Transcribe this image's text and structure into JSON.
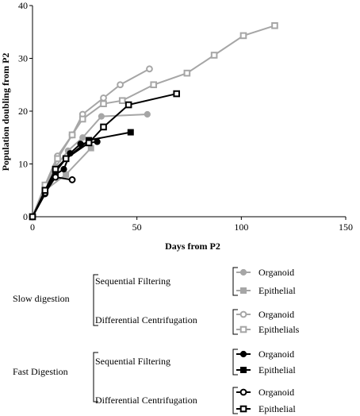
{
  "chart_data": {
    "type": "line",
    "xlabel": "Days from P2",
    "ylabel": "Population doubling from P2",
    "xlim": [
      0,
      150
    ],
    "ylim": [
      0,
      40
    ],
    "x_ticks": [
      0,
      50,
      100,
      150
    ],
    "y_ticks": [
      0,
      10,
      20,
      30,
      40
    ],
    "grid": false,
    "legend_position": "bottom",
    "series": [
      {
        "name": "Organoid",
        "group": "Slow digestion",
        "method": "Sequential Filtering",
        "color": "#a6a6a6",
        "marker": "circle-filled",
        "x": [
          0,
          6,
          11,
          17,
          24,
          33,
          55
        ],
        "y": [
          0,
          5.5,
          9.5,
          12.5,
          15,
          19,
          19.4
        ]
      },
      {
        "name": "Epithelial",
        "group": "Slow digestion",
        "method": "Sequential Filtering",
        "color": "#a6a6a6",
        "marker": "square-filled",
        "x": [
          0,
          6,
          16,
          28
        ],
        "y": [
          0,
          5,
          8,
          13
        ]
      },
      {
        "name": "Organoid",
        "group": "Slow digestion",
        "method": "Differential Centrifugation",
        "color": "#a6a6a6",
        "marker": "circle-open",
        "x": [
          0,
          6,
          12,
          19,
          24,
          34,
          42,
          56
        ],
        "y": [
          0,
          6,
          11.5,
          15.5,
          19.4,
          22.5,
          25,
          28
        ]
      },
      {
        "name": "Epithelials",
        "group": "Slow digestion",
        "method": "Differential Centrifugation",
        "color": "#a6a6a6",
        "marker": "square-open",
        "x": [
          0,
          6,
          12,
          19,
          24,
          34,
          43,
          58,
          74,
          87,
          101,
          116
        ],
        "y": [
          0,
          6,
          11,
          15.5,
          18.5,
          21.4,
          22,
          25,
          27.2,
          30.6,
          34.3,
          36.2
        ]
      },
      {
        "name": "Organoid",
        "group": "Fast Digestion",
        "method": "Sequential Filtering",
        "color": "#000000",
        "marker": "circle-filled",
        "x": [
          0,
          6,
          11,
          15,
          18,
          23,
          31
        ],
        "y": [
          0,
          4.3,
          8,
          9,
          12,
          13.8,
          14.2
        ]
      },
      {
        "name": "Epithelial",
        "group": "Fast Digestion",
        "method": "Sequential Filtering",
        "color": "#000000",
        "marker": "square-filled",
        "x": [
          0,
          6,
          11,
          16,
          27,
          47
        ],
        "y": [
          0,
          4.8,
          8.5,
          11,
          14.5,
          16
        ]
      },
      {
        "name": "Organoid",
        "group": "Fast Digestion",
        "method": "Differential Centrifugation",
        "color": "#000000",
        "marker": "circle-open",
        "x": [
          0,
          6,
          11,
          19
        ],
        "y": [
          0,
          4.5,
          7.5,
          7
        ]
      },
      {
        "name": "Epithelial",
        "group": "Fast Digestion",
        "method": "Differential Centrifugation",
        "color": "#000000",
        "marker": "square-open",
        "x": [
          0,
          6,
          11,
          16,
          27,
          34,
          46,
          69
        ],
        "y": [
          0,
          5,
          9,
          11,
          14,
          17,
          21.2,
          23.3
        ]
      }
    ],
    "legend": {
      "groups": [
        {
          "label": "Slow digestion",
          "methods": [
            {
              "label": "Sequential Filtering",
              "series": [
                0,
                1
              ]
            },
            {
              "label": "Differential Centrifugation",
              "series": [
                2,
                3
              ]
            }
          ]
        },
        {
          "label": "Fast Digestion",
          "methods": [
            {
              "label": "Sequential Filtering",
              "series": [
                4,
                5
              ]
            },
            {
              "label": "Differential Centrifugation",
              "series": [
                6,
                7
              ]
            }
          ]
        }
      ]
    }
  }
}
